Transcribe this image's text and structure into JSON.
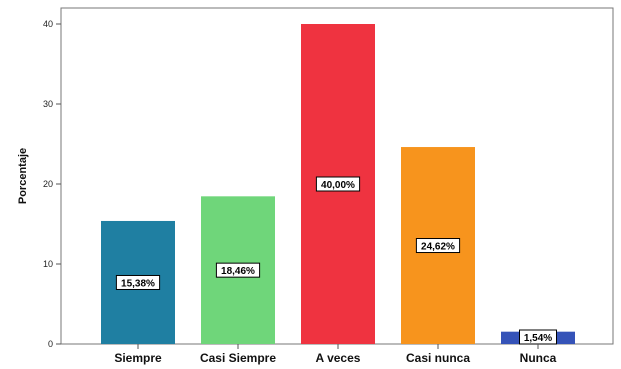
{
  "chart_data": {
    "type": "bar",
    "categories": [
      "Siempre",
      "Casi Siempre",
      "A veces",
      "Casi nunca",
      "Nunca"
    ],
    "values": [
      15.38,
      18.46,
      40.0,
      24.62,
      1.54
    ],
    "data_labels": [
      "15,38%",
      "18,46%",
      "40,00%",
      "24,62%",
      "1,54%"
    ],
    "colors": [
      "#1f7fa2",
      "#6fd67a",
      "#ef3340",
      "#f7941d",
      "#3553b8"
    ],
    "title": "",
    "xlabel": "",
    "ylabel": "Porcentaje",
    "ylim": [
      0,
      42
    ],
    "yticks": [
      0,
      10,
      20,
      30,
      40
    ],
    "grid": false,
    "legend": "none"
  }
}
